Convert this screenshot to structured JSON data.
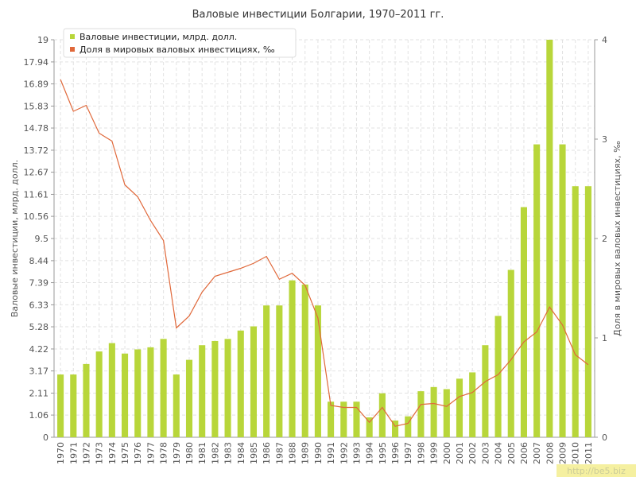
{
  "chart_data": {
    "type": "bar-line",
    "title": "Валовые инвестиции Болгарии, 1970–2011 гг.",
    "y_label": "Валовые инвестиции, млрд. долл.",
    "y2_label": "Доля в мировых валовых инвестициях, ‰",
    "watermark": "http://be5.biz",
    "legend": "top-left",
    "grid": true,
    "categories": [
      "1970",
      "1971",
      "1972",
      "1973",
      "1974",
      "1975",
      "1976",
      "1977",
      "1978",
      "1979",
      "1980",
      "1981",
      "1982",
      "1983",
      "1984",
      "1985",
      "1986",
      "1987",
      "1988",
      "1989",
      "1990",
      "1991",
      "1992",
      "1993",
      "1994",
      "1995",
      "1996",
      "1997",
      "1998",
      "1999",
      "2000",
      "2001",
      "2002",
      "2003",
      "2004",
      "2005",
      "2006",
      "2007",
      "2008",
      "2009",
      "2010",
      "2011"
    ],
    "ylim": [
      0,
      19
    ],
    "yticks": [
      0,
      1.06,
      2.11,
      3.17,
      4.22,
      5.28,
      6.33,
      7.39,
      8.44,
      9.5,
      10.56,
      11.61,
      12.67,
      13.72,
      14.78,
      15.83,
      16.89,
      17.94,
      19
    ],
    "y2lim": [
      0,
      4
    ],
    "y2ticks": [
      0,
      1,
      2,
      3,
      4
    ],
    "series": [
      {
        "name": "Валовые инвестиции, млрд. долл.",
        "color": "#b8d63a",
        "kind": "bar",
        "values": [
          3.0,
          3.0,
          3.5,
          4.1,
          4.5,
          4.0,
          4.2,
          4.3,
          4.7,
          3.0,
          3.7,
          4.4,
          4.6,
          4.7,
          5.1,
          5.3,
          6.3,
          6.3,
          7.5,
          7.3,
          6.3,
          1.7,
          1.7,
          1.7,
          0.95,
          2.1,
          0.8,
          1.0,
          2.2,
          2.4,
          2.3,
          2.8,
          3.1,
          4.4,
          5.8,
          8.0,
          11.0,
          14.0,
          19.0,
          14.0,
          12.0,
          12.0
        ]
      },
      {
        "name": "Доля в мировых валовых инвестициях, ‰",
        "color": "#e0683a",
        "kind": "line",
        "axis": "y2",
        "values": [
          3.6,
          3.28,
          3.34,
          3.06,
          2.98,
          2.54,
          2.42,
          2.18,
          1.98,
          1.1,
          1.22,
          1.46,
          1.62,
          1.66,
          1.7,
          1.75,
          1.82,
          1.59,
          1.65,
          1.53,
          1.2,
          0.32,
          0.3,
          0.3,
          0.15,
          0.3,
          0.11,
          0.14,
          0.33,
          0.34,
          0.31,
          0.41,
          0.45,
          0.56,
          0.63,
          0.78,
          0.96,
          1.06,
          1.31,
          1.13,
          0.83,
          0.73
        ]
      }
    ]
  }
}
